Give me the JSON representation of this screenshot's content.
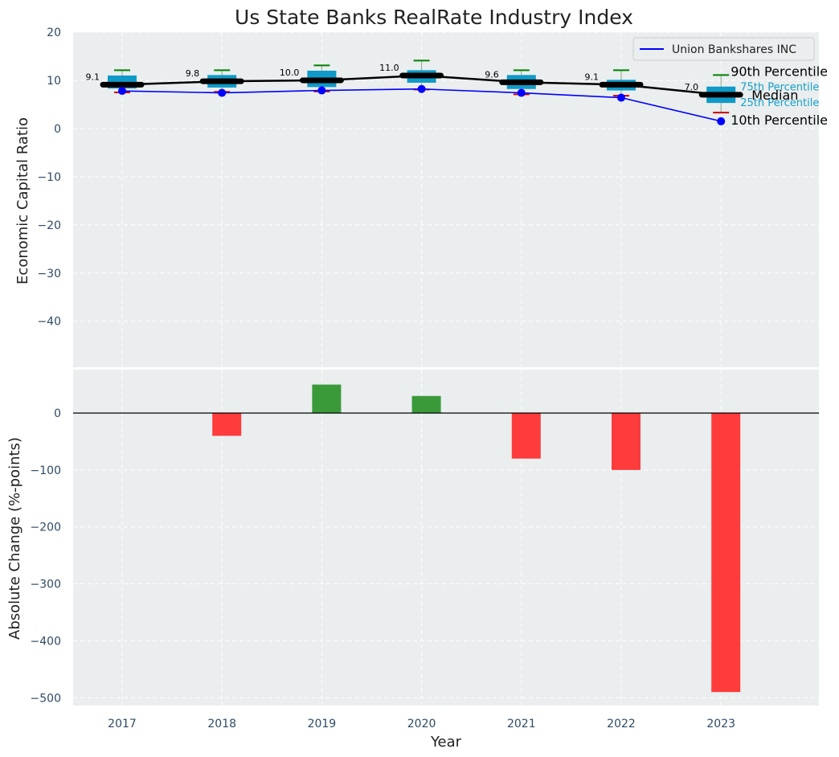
{
  "chart_data": [
    {
      "type": "box",
      "title": "Us State Banks RealRate Industry Index",
      "xlabel": "",
      "ylabel": "Economic Capital Ratio",
      "ylim": [
        -50,
        20
      ],
      "yticks": [
        20,
        10,
        0,
        -10,
        -20,
        -30,
        -40
      ],
      "ytick_labels": [
        "20",
        "10",
        "0",
        "−10",
        "−20",
        "−30",
        "−40"
      ],
      "categories": [
        "2017",
        "2018",
        "2019",
        "2020",
        "2021",
        "2022",
        "2023"
      ],
      "grid": true,
      "percentiles": {
        "p10": [
          7.5,
          7.6,
          7.7,
          8.1,
          7.1,
          6.8,
          3.3
        ],
        "p25": [
          8.3,
          8.5,
          8.6,
          9.5,
          8.2,
          7.9,
          5.3
        ],
        "median": [
          9.1,
          9.8,
          10.0,
          11.0,
          9.6,
          9.1,
          7.0
        ],
        "p75": [
          11.0,
          11.1,
          12.0,
          12.1,
          11.1,
          10.1,
          8.7
        ],
        "p90": [
          12.1,
          12.1,
          13.1,
          14.1,
          12.1,
          12.1,
          11.1
        ]
      },
      "median_labels": [
        "9.1",
        "9.8",
        "10.0",
        "11.0",
        "9.6",
        "9.1",
        "7.0"
      ],
      "series": [
        {
          "name": "Union Bankshares INC",
          "values": [
            7.8,
            7.4,
            7.9,
            8.2,
            7.4,
            6.4,
            1.5
          ],
          "color": "#0000ff"
        }
      ],
      "legend": {
        "position": "top-right",
        "label": "Union Bankshares INC"
      },
      "annotations": {
        "p90": "90th Percentile",
        "p75": "75th Percentile",
        "median": "Median",
        "p25": "25th Percentile",
        "p10": "10th Percentile"
      }
    },
    {
      "type": "bar",
      "xlabel": "Year",
      "ylabel": "Absolute Change (%-points)",
      "ylim": [
        -515,
        50
      ],
      "yticks": [
        0,
        -100,
        -200,
        -300,
        -400,
        -500
      ],
      "ytick_labels": [
        "0",
        "−100",
        "−200",
        "−300",
        "−400",
        "−500"
      ],
      "categories": [
        "2017",
        "2018",
        "2019",
        "2020",
        "2021",
        "2022",
        "2023"
      ],
      "values": [
        0,
        -40,
        50,
        30,
        -80,
        -100,
        -490
      ],
      "positive_color": "#3a9a3a",
      "negative_color": "#ff3b3b"
    }
  ],
  "colors": {
    "plot_bg": "#eaeeef",
    "box_fill": "#0f9ac7",
    "whisker_top": "#008000",
    "whisker_bottom": "#cc0000",
    "median_line": "#000000",
    "percentile_label": "#17a0c8"
  }
}
